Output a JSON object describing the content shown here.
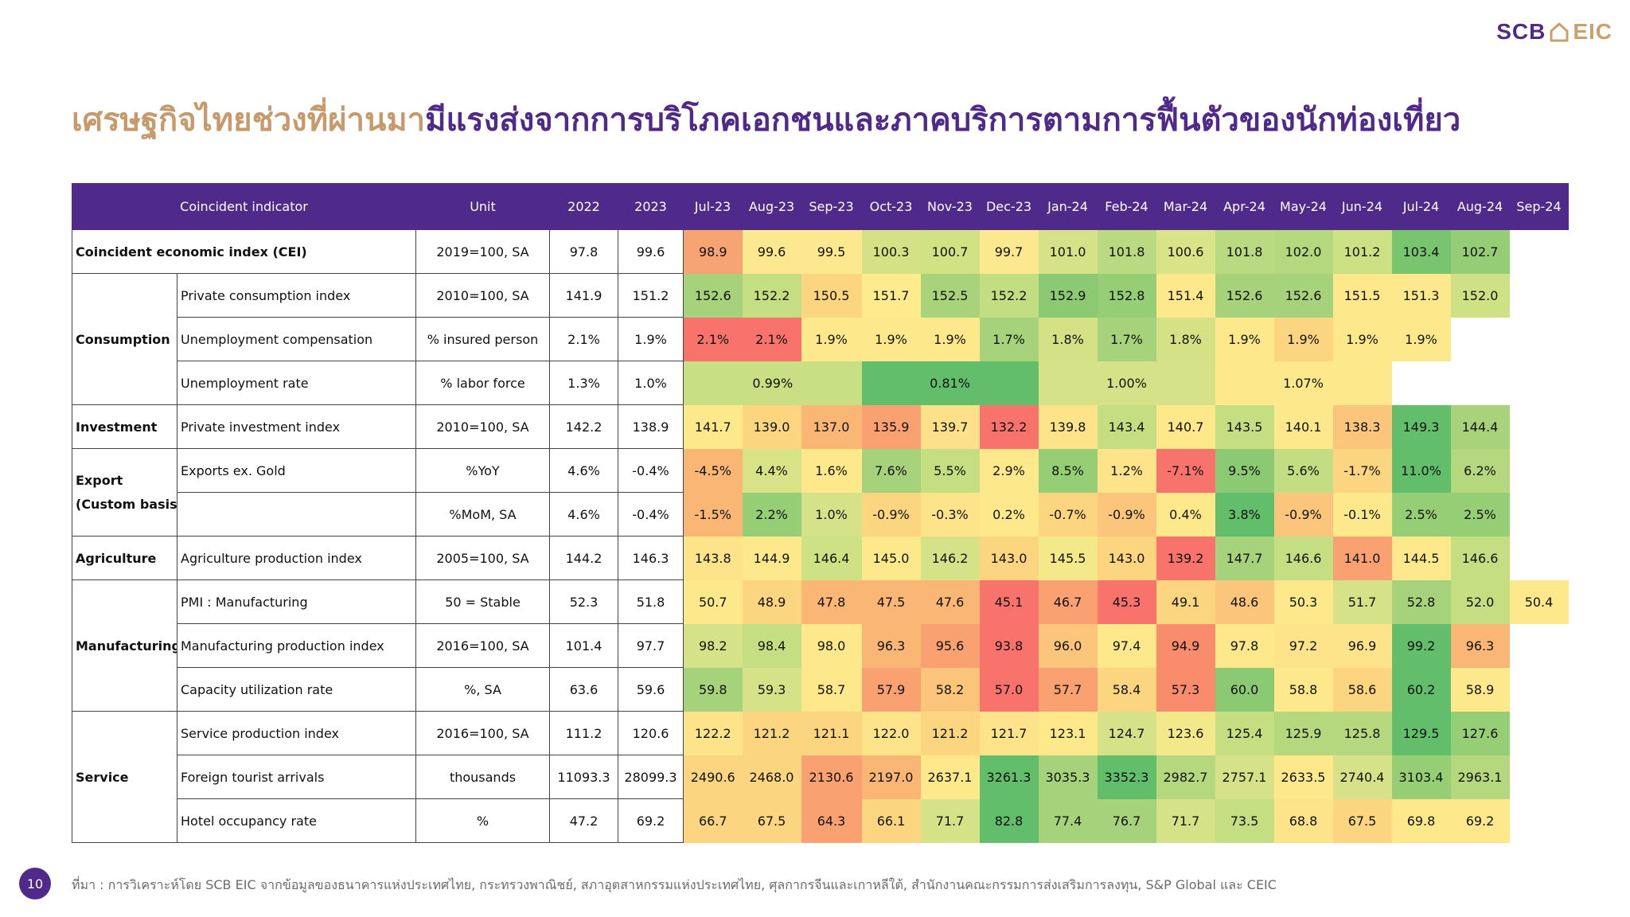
{
  "logo": {
    "scb": "SCB",
    "eic": "EIC"
  },
  "title": {
    "part1": "เศรษฐกิจไทยช่วงที่ผ่านมา",
    "part2": "มีแรงส่งจากการบริโภคเอกชนและภาคบริการตามการฟื้นตัวของนักท่องเที่ยว"
  },
  "table": {
    "headers": [
      "Coincident indicator",
      "Unit",
      "2022",
      "2023",
      "Jul-23",
      "Aug-23",
      "Sep-23",
      "Oct-23",
      "Nov-23",
      "Dec-23",
      "Jan-24",
      "Feb-24",
      "Mar-24",
      "Apr-24",
      "May-24",
      "Jun-24",
      "Jul-24",
      "Aug-24",
      "Sep-24"
    ],
    "categories": {
      "cei": "Coincident economic index (CEI)",
      "consumption": "Consumption",
      "investment": "Investment",
      "export_line1": "Export",
      "export_line2": "(Custom basis)",
      "agriculture": "Agriculture",
      "manufacturing": "Manufacturing",
      "service": "Service"
    },
    "rows": [
      {
        "indicator": "",
        "unit": "2019=100, SA",
        "y2022": "97.8",
        "y2023": "99.6",
        "months": [
          "98.9",
          "99.6",
          "99.5",
          "100.3",
          "100.7",
          "99.7",
          "101.0",
          "101.8",
          "100.6",
          "101.8",
          "102.0",
          "101.2",
          "103.4",
          "102.7",
          ""
        ],
        "colors": [
          "#f6a472",
          "#fce98f",
          "#fce98f",
          "#d4e285",
          "#d0e283",
          "#fce98f",
          "#d6e287",
          "#b9da80",
          "#d9e388",
          "#b9da80",
          "#b3d87e",
          "#cce184",
          "#79c46f",
          "#94cd75",
          "#ffffff"
        ]
      },
      {
        "indicator": "Private consumption index",
        "unit": "2010=100, SA",
        "y2022": "141.9",
        "y2023": "151.2",
        "months": [
          "152.6",
          "152.2",
          "150.5",
          "151.7",
          "152.5",
          "152.2",
          "152.9",
          "152.8",
          "151.4",
          "152.6",
          "152.6",
          "151.5",
          "151.3",
          "152.0",
          ""
        ],
        "colors": [
          "#a5d27a",
          "#c5de82",
          "#fcd580",
          "#fdeb8e",
          "#a9d37b",
          "#c2dd82",
          "#8bca73",
          "#96ce76",
          "#fde98b",
          "#a5d27a",
          "#a5d27a",
          "#fde98b",
          "#fde98b",
          "#cee184",
          "#ffffff"
        ]
      },
      {
        "indicator": "Unemployment compensation",
        "unit": "% insured person",
        "y2022": "2.1%",
        "y2023": "1.9%",
        "months": [
          "2.1%",
          "2.1%",
          "1.9%",
          "1.9%",
          "1.9%",
          "1.7%",
          "1.8%",
          "1.7%",
          "1.8%",
          "1.9%",
          "1.9%",
          "1.9%",
          "1.9%",
          "",
          ""
        ],
        "colors": [
          "#f8736b",
          "#f8736b",
          "#fde98b",
          "#fde98b",
          "#fde98b",
          "#a5d27a",
          "#d4e285",
          "#a5d27a",
          "#d4e285",
          "#fde98b",
          "#fcd580",
          "#fde98b",
          "#fde98b",
          "#ffffff",
          "#ffffff"
        ]
      },
      {
        "indicator": "Unemployment rate",
        "unit": "% labor force",
        "y2022": "1.3%",
        "y2023": "1.0%",
        "quarters": [
          "0.99%",
          "0.81%",
          "1.00%",
          "1.07%"
        ],
        "qcolors": [
          "#c8df83",
          "#63be6b",
          "#d6e287",
          "#fde98b"
        ]
      },
      {
        "indicator": "Private investment index",
        "unit": "2010=100, SA",
        "y2022": "142.2",
        "y2023": "138.9",
        "months": [
          "141.7",
          "139.0",
          "137.0",
          "135.9",
          "139.7",
          "132.2",
          "139.8",
          "143.4",
          "140.7",
          "143.5",
          "140.1",
          "138.3",
          "149.3",
          "144.4",
          ""
        ],
        "colors": [
          "#fde98b",
          "#fcd580",
          "#fab675",
          "#f9a170",
          "#fde08a",
          "#f8736b",
          "#fde38a",
          "#c6de82",
          "#fde98b",
          "#c6de82",
          "#fde98b",
          "#fcc57c",
          "#63be6b",
          "#a9d37b",
          "#ffffff"
        ]
      },
      {
        "indicator": "Exports ex. Gold",
        "unit": "%YoY",
        "y2022": "4.6%",
        "y2023": "-0.4%",
        "months": [
          "-4.5%",
          "4.4%",
          "1.6%",
          "7.6%",
          "5.5%",
          "2.9%",
          "8.5%",
          "1.2%",
          "-7.1%",
          "9.5%",
          "5.6%",
          "-1.7%",
          "11.0%",
          "6.2%",
          ""
        ],
        "colors": [
          "#fab675",
          "#d8e387",
          "#fde98b",
          "#a5d27a",
          "#c6de82",
          "#fde98b",
          "#96ce76",
          "#fde38a",
          "#f8736b",
          "#8bca73",
          "#c2dd82",
          "#fcd580",
          "#63be6b",
          "#b5d87e",
          "#ffffff"
        ]
      },
      {
        "indicator": "",
        "unit": "%MoM, SA",
        "y2022": "4.6%",
        "y2023": "-0.4%",
        "months": [
          "-1.5%",
          "2.2%",
          "1.0%",
          "-0.9%",
          "-0.3%",
          "0.2%",
          "-0.7%",
          "-0.9%",
          "0.4%",
          "3.8%",
          "-0.9%",
          "-0.1%",
          "2.5%",
          "2.5%",
          ""
        ],
        "colors": [
          "#fab675",
          "#96ce76",
          "#d6e287",
          "#fcd580",
          "#fde38a",
          "#fde98b",
          "#fcd580",
          "#fcc57c",
          "#fde98b",
          "#63be6b",
          "#fcc57c",
          "#fde98b",
          "#96ce76",
          "#96ce76",
          "#ffffff"
        ]
      },
      {
        "indicator": "Agriculture production index",
        "unit": "2005=100, SA",
        "y2022": "144.2",
        "y2023": "146.3",
        "months": [
          "143.8",
          "144.9",
          "146.4",
          "145.0",
          "146.2",
          "143.0",
          "145.5",
          "143.0",
          "139.2",
          "147.7",
          "146.6",
          "141.0",
          "144.5",
          "146.6",
          ""
        ],
        "colors": [
          "#fde38a",
          "#fde98b",
          "#cee184",
          "#fde98b",
          "#d6e287",
          "#fcd580",
          "#f3e98b",
          "#fcd580",
          "#f8736b",
          "#a5d27a",
          "#c6de82",
          "#f9a170",
          "#fde98b",
          "#c6de82",
          "#ffffff"
        ]
      },
      {
        "indicator": "PMI : Manufacturing",
        "unit": "50 = Stable",
        "y2022": "52.3",
        "y2023": "51.8",
        "months": [
          "50.7",
          "48.9",
          "47.8",
          "47.5",
          "47.6",
          "45.1",
          "46.7",
          "45.3",
          "49.1",
          "48.6",
          "50.3",
          "51.7",
          "52.8",
          "52.0",
          "50.4"
        ],
        "colors": [
          "#fde98b",
          "#fcd580",
          "#fab675",
          "#fab675",
          "#fab675",
          "#f8736b",
          "#f9a170",
          "#f8736b",
          "#fcd580",
          "#fcc57c",
          "#fde98b",
          "#d6e287",
          "#a5d27a",
          "#c6de82",
          "#fde98b"
        ]
      },
      {
        "indicator": "Manufacturing production index",
        "unit": "2016=100, SA",
        "y2022": "101.4",
        "y2023": "97.7",
        "months": [
          "98.2",
          "98.4",
          "98.0",
          "96.3",
          "95.6",
          "93.8",
          "96.0",
          "97.4",
          "94.9",
          "97.8",
          "97.2",
          "96.9",
          "99.2",
          "96.3",
          ""
        ],
        "colors": [
          "#d6e287",
          "#c6de82",
          "#fde98b",
          "#fab675",
          "#f9a170",
          "#f8736b",
          "#fcc57c",
          "#fde98b",
          "#f88c6d",
          "#fde98b",
          "#fde38a",
          "#fde38a",
          "#63be6b",
          "#fab675",
          "#ffffff"
        ]
      },
      {
        "indicator": "Capacity utilization rate",
        "unit": "%, SA",
        "y2022": "63.6",
        "y2023": "59.6",
        "months": [
          "59.8",
          "59.3",
          "58.7",
          "57.9",
          "58.2",
          "57.0",
          "57.7",
          "58.4",
          "57.3",
          "60.0",
          "58.8",
          "58.6",
          "60.2",
          "58.9",
          ""
        ],
        "colors": [
          "#a5d27a",
          "#d6e287",
          "#fde98b",
          "#f9a170",
          "#fcc57c",
          "#f8736b",
          "#f9a170",
          "#fcd580",
          "#f88c6d",
          "#8bca73",
          "#fde98b",
          "#fcd580",
          "#63be6b",
          "#fde98b",
          "#ffffff"
        ]
      },
      {
        "indicator": "Service production index",
        "unit": "2016=100, SA",
        "y2022": "111.2",
        "y2023": "120.6",
        "months": [
          "122.2",
          "121.2",
          "121.1",
          "122.0",
          "121.2",
          "121.7",
          "123.1",
          "124.7",
          "123.6",
          "125.4",
          "125.9",
          "125.8",
          "129.5",
          "127.6",
          ""
        ],
        "colors": [
          "#fde38a",
          "#fcd580",
          "#fcd580",
          "#fde38a",
          "#fcd580",
          "#fde38a",
          "#fde98b",
          "#d6e287",
          "#f3e98b",
          "#c6de82",
          "#b5d87e",
          "#b5d87e",
          "#63be6b",
          "#96ce76",
          "#ffffff"
        ]
      },
      {
        "indicator": "Foreign tourist arrivals",
        "unit": "thousands",
        "y2022": "11093.3",
        "y2023": "28099.3",
        "months": [
          "2490.6",
          "2468.0",
          "2130.6",
          "2197.0",
          "2637.1",
          "3261.3",
          "3035.3",
          "3352.3",
          "2982.7",
          "2757.1",
          "2633.5",
          "2740.4",
          "3103.4",
          "2963.1",
          ""
        ],
        "colors": [
          "#fcd580",
          "#fcd580",
          "#f9a170",
          "#fab675",
          "#fde98b",
          "#63be6b",
          "#a5d27a",
          "#63be6b",
          "#b5d87e",
          "#d6e287",
          "#fde98b",
          "#d6e287",
          "#96ce76",
          "#b5d87e",
          "#ffffff"
        ]
      },
      {
        "indicator": "Hotel occupancy rate",
        "unit": "%",
        "y2022": "47.2",
        "y2023": "69.2",
        "months": [
          "66.7",
          "67.5",
          "64.3",
          "66.1",
          "71.7",
          "82.8",
          "77.4",
          "76.7",
          "71.7",
          "73.5",
          "68.8",
          "67.5",
          "69.8",
          "69.2",
          ""
        ],
        "colors": [
          "#fcd580",
          "#fcd580",
          "#f9a170",
          "#fcd580",
          "#d6e287",
          "#63be6b",
          "#a5d27a",
          "#a5d27a",
          "#d6e287",
          "#c6de82",
          "#fde38a",
          "#fcd580",
          "#fde98b",
          "#fde98b",
          "#ffffff"
        ]
      }
    ]
  },
  "footer": {
    "page": "10",
    "source": "ที่มา : การวิเคราะห์โดย SCB EIC จากข้อมูลของธนาคารแห่งประเทศไทย, กระทรวงพาณิชย์, สภาอุตสาหกรรมแห่งประเทศไทย, ศุลกากรจีนและเกาหลีใต้, สำนักงานคณะกรรมการส่งเสริมการลงทุน, S&P Global และ CEIC"
  }
}
